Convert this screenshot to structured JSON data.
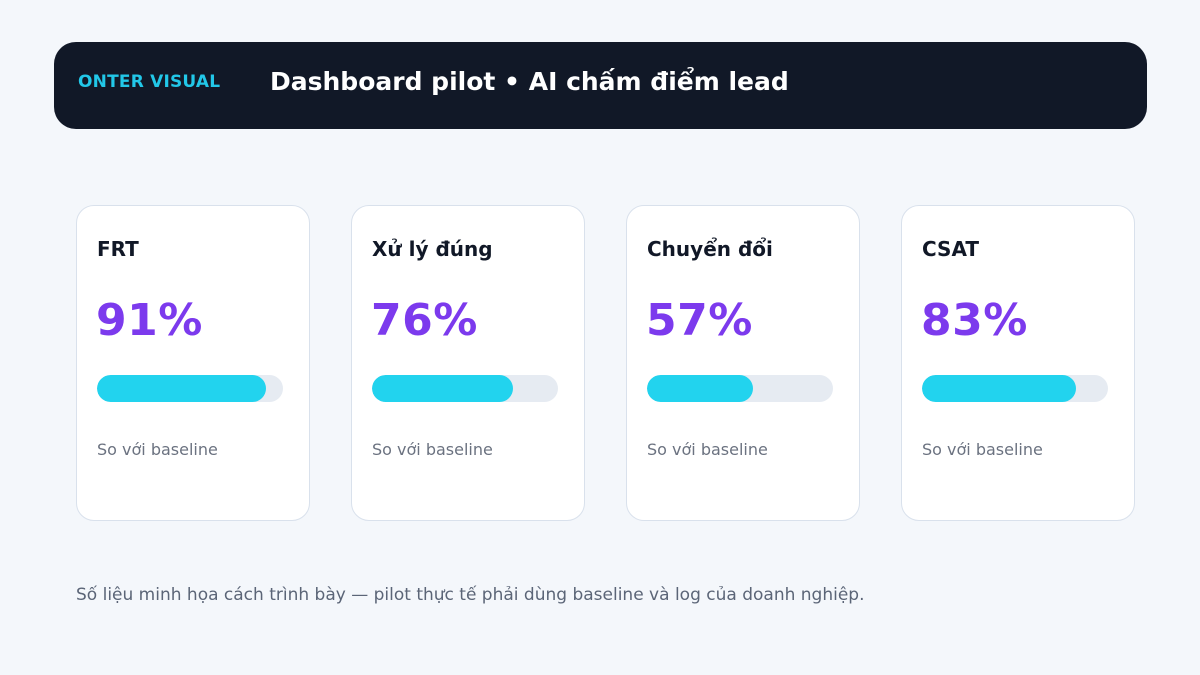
{
  "header": {
    "brand": "ONTER VISUAL",
    "title": "Dashboard pilot • AI chấm điểm lead"
  },
  "colors": {
    "header_bg": "#111827",
    "brand": "#22c7e8",
    "value": "#7c3aed",
    "bar_fill": "#22d3ee",
    "bar_track": "#e6ebf2"
  },
  "cards": [
    {
      "label": "FRT",
      "value": "91%",
      "progress": 0.91,
      "sub": "So với baseline"
    },
    {
      "label": "Xử lý đúng",
      "value": "76%",
      "progress": 0.76,
      "sub": "So với baseline"
    },
    {
      "label": "Chuyển đổi",
      "value": "57%",
      "progress": 0.57,
      "sub": "So với baseline"
    },
    {
      "label": "CSAT",
      "value": "83%",
      "progress": 0.83,
      "sub": "So với baseline"
    }
  ],
  "footnote": "Số liệu minh họa cách trình bày — pilot thực tế phải dùng baseline và log của doanh nghiệp."
}
